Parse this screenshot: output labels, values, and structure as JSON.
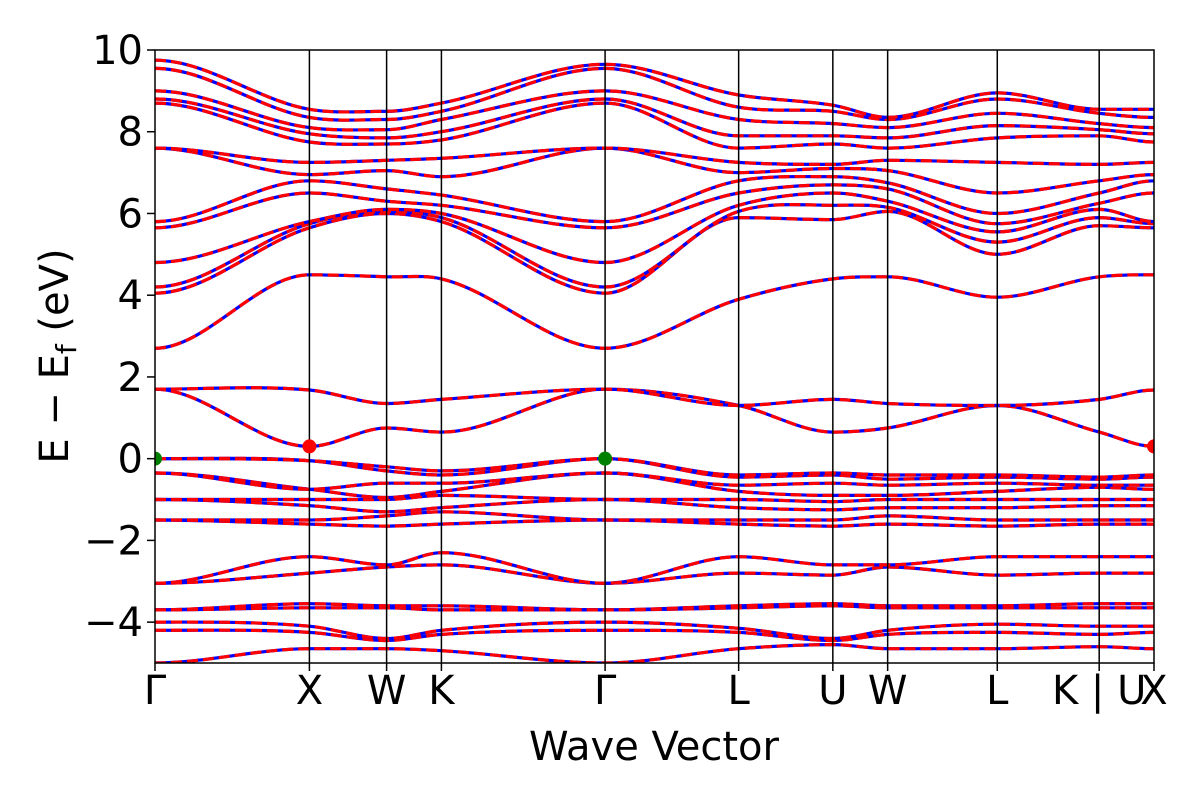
{
  "chart_data": {
    "type": "line",
    "title": "",
    "xlabel": "Wave Vector",
    "ylabel_main": "E − E",
    "ylabel_sub": "f",
    "ylabel_unit": " (eV)",
    "ylim": [
      -5,
      10
    ],
    "yticks": [
      -4,
      -2,
      0,
      2,
      4,
      6,
      8,
      10
    ],
    "ytick_labels": [
      "−4",
      "−2",
      "0",
      "2",
      "4",
      "6",
      "8",
      "10"
    ],
    "xlim": [
      0,
      6.47
    ],
    "kpoints": [
      {
        "label": "Γ",
        "x": 0.0
      },
      {
        "label": "X",
        "x": 1.0
      },
      {
        "label": "W",
        "x": 1.5
      },
      {
        "label": "K",
        "x": 1.855
      },
      {
        "label": "Γ",
        "x": 2.915
      },
      {
        "label": "L",
        "x": 3.78
      },
      {
        "label": "U",
        "x": 4.39
      },
      {
        "label": "W",
        "x": 4.745
      },
      {
        "label": "L",
        "x": 5.455
      },
      {
        "label": "K | U",
        "x": 6.115
      },
      {
        "label": "X",
        "x": 6.47
      }
    ],
    "series_colors": {
      "spin_up": "#ff0000",
      "spin_down": "#0000ff"
    },
    "band_extrema": [
      {
        "type": "vbm",
        "x": 0.0,
        "y": 0.0,
        "color": "#008000"
      },
      {
        "type": "vbm",
        "x": 2.915,
        "y": 0.0,
        "color": "#008000"
      },
      {
        "type": "cbm",
        "x": 1.0,
        "y": 0.3,
        "color": "#ff0000"
      },
      {
        "type": "cbm",
        "x": 6.47,
        "y": 0.3,
        "color": "#ff0000"
      }
    ],
    "bands": [
      [
        -5.0,
        -4.65,
        -4.65,
        -4.7,
        -5.0,
        -4.65,
        -4.55,
        -4.65,
        -4.65,
        -4.6,
        -4.65
      ],
      [
        -4.2,
        -4.25,
        -4.45,
        -4.3,
        -4.2,
        -4.25,
        -4.45,
        -4.3,
        -4.25,
        -4.3,
        -4.25
      ],
      [
        -4.0,
        -4.1,
        -4.4,
        -4.2,
        -4.0,
        -4.15,
        -4.4,
        -4.2,
        -4.05,
        -4.1,
        -4.1
      ],
      [
        -3.7,
        -3.65,
        -3.65,
        -3.7,
        -3.7,
        -3.65,
        -3.6,
        -3.65,
        -3.65,
        -3.65,
        -3.65
      ],
      [
        -3.7,
        -3.55,
        -3.6,
        -3.6,
        -3.7,
        -3.6,
        -3.55,
        -3.6,
        -3.6,
        -3.55,
        -3.55
      ],
      [
        -3.05,
        -2.8,
        -2.65,
        -2.6,
        -3.05,
        -2.8,
        -2.85,
        -2.65,
        -2.85,
        -2.8,
        -2.8
      ],
      [
        -3.05,
        -2.4,
        -2.6,
        -2.3,
        -3.05,
        -2.4,
        -2.6,
        -2.6,
        -2.4,
        -2.4,
        -2.4
      ],
      [
        -1.5,
        -1.6,
        -1.65,
        -1.6,
        -1.5,
        -1.6,
        -1.65,
        -1.6,
        -1.65,
        -1.6,
        -1.6
      ],
      [
        -1.5,
        -1.5,
        -1.4,
        -1.3,
        -1.5,
        -1.5,
        -1.5,
        -1.4,
        -1.5,
        -1.5,
        -1.5
      ],
      [
        -1.0,
        -1.15,
        -1.3,
        -1.2,
        -1.0,
        -1.2,
        -1.25,
        -1.2,
        -1.2,
        -1.15,
        -1.15
      ],
      [
        -1.0,
        -1.0,
        -1.0,
        -0.9,
        -1.0,
        -1.0,
        -1.05,
        -1.0,
        -1.0,
        -1.0,
        -1.0
      ],
      [
        -0.35,
        -0.75,
        -0.95,
        -0.8,
        -0.35,
        -0.8,
        -0.9,
        -0.9,
        -0.8,
        -0.7,
        -0.75
      ],
      [
        -0.35,
        -0.75,
        -0.6,
        -0.6,
        -0.35,
        -0.65,
        -0.6,
        -0.65,
        -0.6,
        -0.65,
        -0.65
      ],
      [
        0.0,
        -0.05,
        -0.3,
        -0.4,
        0.0,
        -0.45,
        -0.4,
        -0.5,
        -0.45,
        -0.5,
        -0.45
      ],
      [
        0.0,
        -0.05,
        -0.2,
        -0.3,
        0.0,
        -0.4,
        -0.35,
        -0.4,
        -0.4,
        -0.45,
        -0.4
      ],
      [
        1.7,
        0.3,
        0.75,
        0.65,
        1.7,
        1.3,
        0.65,
        0.75,
        1.3,
        0.65,
        0.3
      ],
      [
        1.7,
        1.68,
        1.35,
        1.45,
        1.7,
        1.3,
        1.45,
        1.35,
        1.3,
        1.45,
        1.68
      ],
      [
        2.7,
        4.5,
        4.45,
        4.4,
        2.7,
        3.9,
        4.4,
        4.45,
        3.95,
        4.45,
        4.5
      ],
      [
        4.05,
        5.65,
        6.0,
        5.8,
        4.05,
        5.9,
        5.85,
        6.05,
        5.0,
        5.7,
        5.65
      ],
      [
        4.2,
        5.75,
        6.05,
        5.9,
        4.2,
        6.05,
        6.2,
        6.15,
        5.3,
        5.9,
        5.75
      ],
      [
        4.8,
        5.8,
        6.1,
        6.0,
        4.8,
        6.2,
        6.5,
        6.3,
        5.55,
        6.1,
        5.8
      ],
      [
        5.65,
        6.5,
        6.3,
        6.2,
        5.65,
        6.5,
        6.7,
        6.6,
        5.75,
        6.25,
        6.5
      ],
      [
        5.8,
        6.8,
        6.6,
        6.45,
        5.8,
        6.8,
        6.9,
        6.75,
        6.0,
        6.5,
        6.8
      ],
      [
        7.6,
        6.95,
        7.05,
        6.9,
        7.6,
        7.0,
        7.1,
        7.05,
        6.5,
        6.8,
        6.95
      ],
      [
        7.6,
        7.25,
        7.3,
        7.35,
        7.6,
        7.25,
        7.2,
        7.3,
        7.25,
        7.2,
        7.25
      ],
      [
        8.7,
        7.75,
        7.7,
        7.8,
        8.7,
        7.6,
        7.7,
        7.6,
        7.85,
        7.9,
        7.75
      ],
      [
        8.8,
        7.95,
        7.85,
        8.0,
        8.8,
        7.9,
        7.9,
        7.85,
        8.15,
        8.05,
        7.95
      ],
      [
        9.0,
        8.1,
        8.05,
        8.3,
        9.0,
        8.3,
        8.2,
        8.1,
        8.45,
        8.2,
        8.1
      ],
      [
        9.55,
        8.35,
        8.3,
        8.5,
        9.55,
        8.6,
        8.5,
        8.3,
        8.8,
        8.45,
        8.35
      ],
      [
        9.75,
        8.55,
        8.5,
        8.7,
        9.65,
        8.9,
        8.65,
        8.35,
        8.95,
        8.55,
        8.55
      ]
    ]
  }
}
